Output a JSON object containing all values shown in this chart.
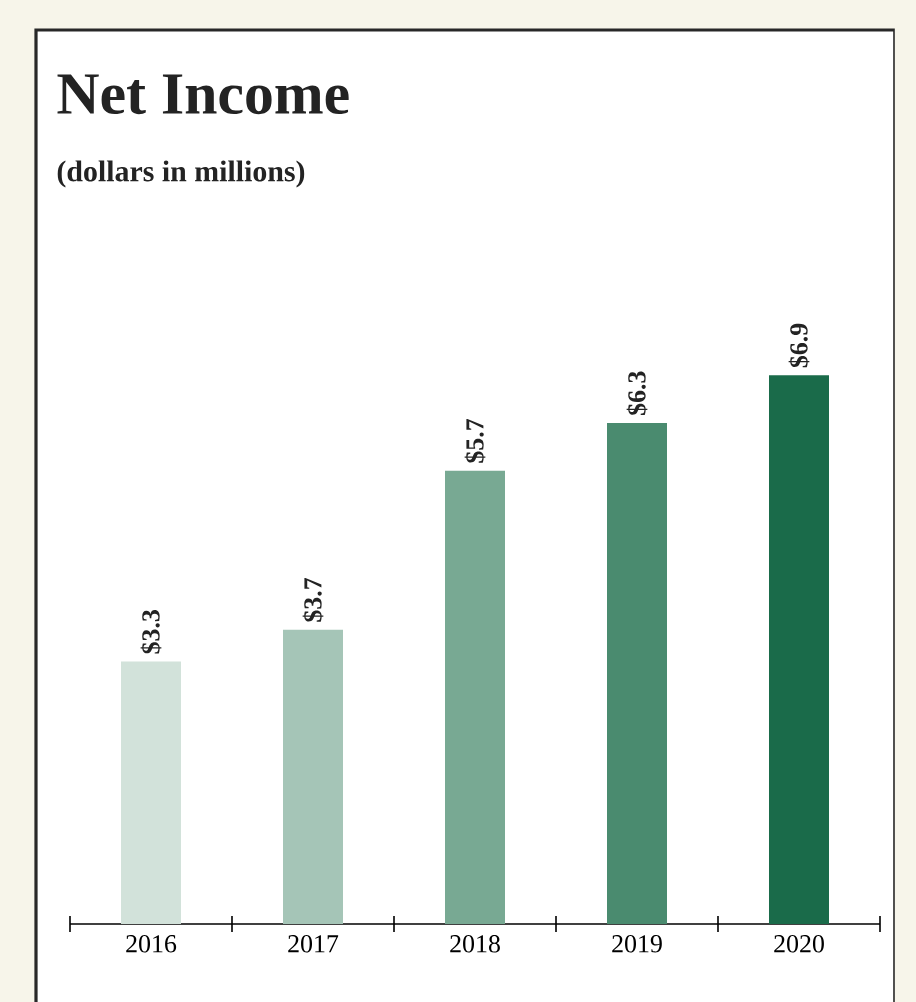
{
  "chart_data": {
    "type": "bar",
    "title": "Net Income",
    "subtitle": "(dollars in millions)",
    "categories": [
      "2016",
      "2017",
      "2018",
      "2019",
      "2020"
    ],
    "values": [
      3.3,
      3.7,
      5.7,
      6.3,
      6.9
    ],
    "value_labels": [
      "$3.3",
      "$3.7",
      "$5.7",
      "$6.3",
      "$6.9"
    ],
    "colors": [
      "#d2e2da",
      "#a5c5b7",
      "#78a993",
      "#4a8b6f",
      "#1a6b4a"
    ],
    "grid": false,
    "tick_labels": "x"
  }
}
